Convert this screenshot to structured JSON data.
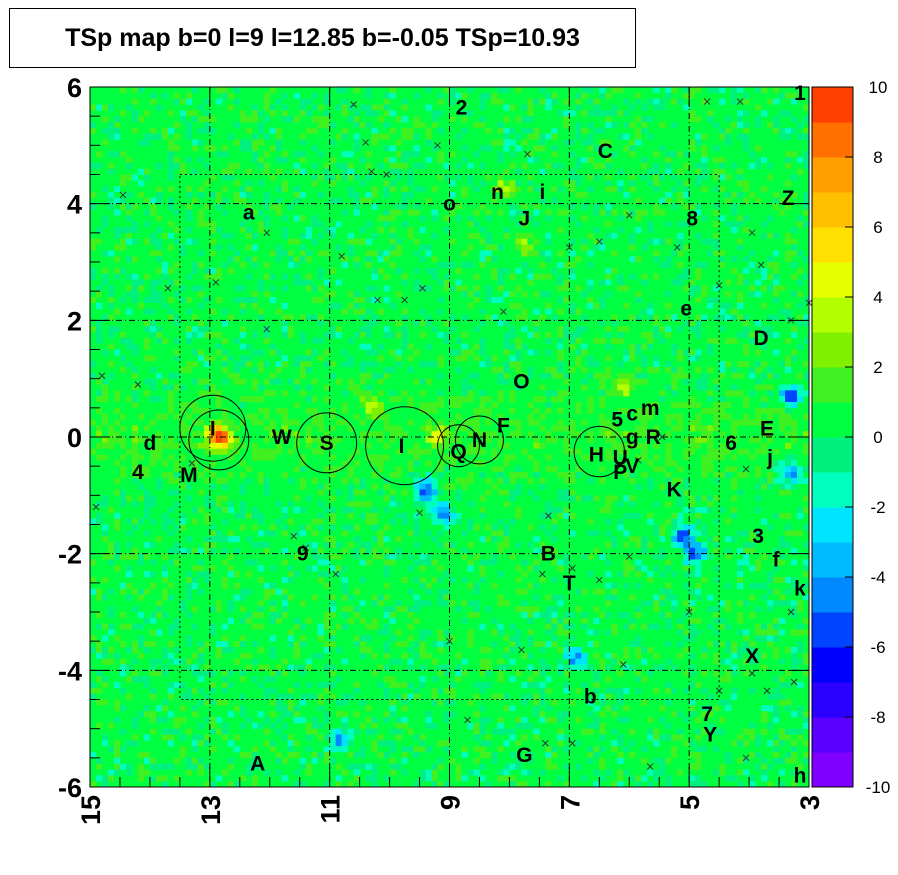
{
  "chart_data": {
    "type": "heatmap",
    "title": "TSp map b=0 l=9 l=12.85 b=-0.05 TSp=10.93",
    "xlim": [
      15,
      3
    ],
    "ylim": [
      -6,
      6
    ],
    "x_ticks": [
      15,
      13,
      11,
      9,
      7,
      5,
      3
    ],
    "y_ticks": [
      -6,
      -4,
      -2,
      0,
      2,
      4,
      6
    ],
    "colorbar": {
      "range": [
        -10,
        10
      ],
      "ticks": [
        -10,
        -8,
        -6,
        -4,
        -2,
        0,
        2,
        4,
        6,
        8,
        10
      ]
    },
    "grid": true,
    "inner_box": {
      "l": [
        13.5,
        4.5
      ],
      "b": [
        -4.5,
        4.5
      ]
    },
    "hotspots": [
      {
        "l": 12.85,
        "b": 0.0,
        "v": 10
      },
      {
        "l": 9.4,
        "b": -0.9,
        "v": -6
      },
      {
        "l": 9.1,
        "b": -1.3,
        "v": -5
      },
      {
        "l": 5.1,
        "b": -1.7,
        "v": -6
      },
      {
        "l": 4.9,
        "b": -2.0,
        "v": -5
      },
      {
        "l": 10.8,
        "b": -5.2,
        "v": -4
      },
      {
        "l": 6.9,
        "b": -3.8,
        "v": -4
      },
      {
        "l": 3.3,
        "b": -0.6,
        "v": -5
      },
      {
        "l": 3.3,
        "b": 0.7,
        "v": -6
      },
      {
        "l": 9.2,
        "b": 0.0,
        "v": 4
      },
      {
        "l": 6.1,
        "b": 0.9,
        "v": 4
      },
      {
        "l": 10.3,
        "b": 0.5,
        "v": 3
      },
      {
        "l": 7.8,
        "b": 3.3,
        "v": 3
      },
      {
        "l": 8.1,
        "b": 4.3,
        "v": 3
      }
    ],
    "circles": [
      {
        "l": 12.95,
        "b": 0.15,
        "r": 0.55
      },
      {
        "l": 12.85,
        "b": -0.05,
        "r": 0.5
      },
      {
        "l": 11.05,
        "b": -0.1,
        "r": 0.5
      },
      {
        "l": 9.75,
        "b": -0.15,
        "r": 0.65
      },
      {
        "l": 8.85,
        "b": -0.15,
        "r": 0.35
      },
      {
        "l": 8.5,
        "b": -0.05,
        "r": 0.4
      },
      {
        "l": 6.5,
        "b": -0.25,
        "r": 0.42
      }
    ],
    "source_labels": [
      {
        "text": "1",
        "l": 3.15,
        "b": 5.9
      },
      {
        "text": "2",
        "l": 8.8,
        "b": 5.65
      },
      {
        "text": "C",
        "l": 6.4,
        "b": 4.9
      },
      {
        "text": "n",
        "l": 8.2,
        "b": 4.2
      },
      {
        "text": "i",
        "l": 7.45,
        "b": 4.2
      },
      {
        "text": "o",
        "l": 9.0,
        "b": 4.0
      },
      {
        "text": "Z",
        "l": 3.35,
        "b": 4.1
      },
      {
        "text": "a",
        "l": 12.35,
        "b": 3.85
      },
      {
        "text": "J",
        "l": 7.75,
        "b": 3.75
      },
      {
        "text": "8",
        "l": 4.95,
        "b": 3.75
      },
      {
        "text": "e",
        "l": 5.05,
        "b": 2.2
      },
      {
        "text": "D",
        "l": 3.8,
        "b": 1.7
      },
      {
        "text": "O",
        "l": 7.8,
        "b": 0.95
      },
      {
        "text": "5",
        "l": 6.2,
        "b": 0.3
      },
      {
        "text": "c",
        "l": 5.95,
        "b": 0.4
      },
      {
        "text": "m",
        "l": 5.65,
        "b": 0.5
      },
      {
        "text": "F",
        "l": 8.1,
        "b": 0.2
      },
      {
        "text": "E",
        "l": 3.7,
        "b": 0.15
      },
      {
        "text": "I",
        "l": 12.95,
        "b": 0.15
      },
      {
        "text": "W",
        "l": 11.8,
        "b": 0.0
      },
      {
        "text": "S",
        "l": 11.05,
        "b": -0.1
      },
      {
        "text": "I",
        "l": 9.8,
        "b": -0.15
      },
      {
        "text": "N",
        "l": 8.5,
        "b": -0.05
      },
      {
        "text": "Q",
        "l": 8.85,
        "b": -0.25
      },
      {
        "text": "g",
        "l": 5.95,
        "b": 0.0
      },
      {
        "text": "R",
        "l": 5.6,
        "b": 0.0
      },
      {
        "text": "6",
        "l": 4.3,
        "b": -0.1
      },
      {
        "text": "d",
        "l": 14.0,
        "b": -0.1
      },
      {
        "text": "H",
        "l": 6.55,
        "b": -0.3
      },
      {
        "text": "U",
        "l": 6.15,
        "b": -0.35
      },
      {
        "text": "V",
        "l": 5.95,
        "b": -0.5
      },
      {
        "text": "P",
        "l": 6.15,
        "b": -0.6
      },
      {
        "text": "j",
        "l": 3.65,
        "b": -0.35
      },
      {
        "text": "4",
        "l": 14.2,
        "b": -0.6
      },
      {
        "text": "M",
        "l": 13.35,
        "b": -0.65
      },
      {
        "text": "K",
        "l": 5.25,
        "b": -0.9
      },
      {
        "text": "3",
        "l": 3.85,
        "b": -1.7
      },
      {
        "text": "9",
        "l": 11.45,
        "b": -2.0
      },
      {
        "text": "B",
        "l": 7.35,
        "b": -2.0
      },
      {
        "text": "f",
        "l": 3.55,
        "b": -2.1
      },
      {
        "text": "T",
        "l": 7.0,
        "b": -2.5
      },
      {
        "text": "k",
        "l": 3.15,
        "b": -2.6
      },
      {
        "text": "X",
        "l": 3.95,
        "b": -3.75
      },
      {
        "text": "b",
        "l": 6.65,
        "b": -4.45
      },
      {
        "text": "7",
        "l": 4.7,
        "b": -4.75
      },
      {
        "text": "Y",
        "l": 4.65,
        "b": -5.1
      },
      {
        "text": "G",
        "l": 7.75,
        "b": -5.45
      },
      {
        "text": "A",
        "l": 12.2,
        "b": -5.6
      },
      {
        "text": "h",
        "l": 3.15,
        "b": -5.8
      }
    ],
    "cross_markers": [
      {
        "l": 14.45,
        "b": 4.15
      },
      {
        "l": 13.7,
        "b": 2.55
      },
      {
        "l": 14.2,
        "b": 0.9
      },
      {
        "l": 14.8,
        "b": 1.05
      },
      {
        "l": 12.9,
        "b": 2.65
      },
      {
        "l": 12.05,
        "b": 3.5
      },
      {
        "l": 12.05,
        "b": 1.85
      },
      {
        "l": 10.8,
        "b": 3.1
      },
      {
        "l": 10.4,
        "b": 5.05
      },
      {
        "l": 10.6,
        "b": 5.7
      },
      {
        "l": 10.05,
        "b": 4.5
      },
      {
        "l": 10.3,
        "b": 4.55
      },
      {
        "l": 10.2,
        "b": 2.35
      },
      {
        "l": 9.75,
        "b": 2.35
      },
      {
        "l": 9.45,
        "b": 2.55
      },
      {
        "l": 9.2,
        "b": 5.0
      },
      {
        "l": 8.1,
        "b": 2.15
      },
      {
        "l": 7.7,
        "b": 4.85
      },
      {
        "l": 7.0,
        "b": 3.25
      },
      {
        "l": 6.5,
        "b": 3.35
      },
      {
        "l": 6.0,
        "b": 3.8
      },
      {
        "l": 5.2,
        "b": 3.25
      },
      {
        "l": 4.7,
        "b": 5.75
      },
      {
        "l": 4.15,
        "b": 5.75
      },
      {
        "l": 3.95,
        "b": 3.5
      },
      {
        "l": 3.8,
        "b": 2.95
      },
      {
        "l": 3.3,
        "b": 2.0
      },
      {
        "l": 3.0,
        "b": 2.3
      },
      {
        "l": 4.5,
        "b": 2.6
      },
      {
        "l": 6.95,
        "b": -2.25
      },
      {
        "l": 6.5,
        "b": -2.45
      },
      {
        "l": 7.45,
        "b": -2.35
      },
      {
        "l": 6.0,
        "b": -2.05
      },
      {
        "l": 5.85,
        "b": -0.4
      },
      {
        "l": 5.45,
        "b": 0.0
      },
      {
        "l": 4.05,
        "b": -0.55
      },
      {
        "l": 7.35,
        "b": -1.35
      },
      {
        "l": 11.6,
        "b": -1.7
      },
      {
        "l": 11.4,
        "b": -1.9
      },
      {
        "l": 10.9,
        "b": -2.35
      },
      {
        "l": 9.0,
        "b": -3.5
      },
      {
        "l": 7.8,
        "b": -3.65
      },
      {
        "l": 6.1,
        "b": -3.9
      },
      {
        "l": 5.0,
        "b": -3.0
      },
      {
        "l": 4.5,
        "b": -4.35
      },
      {
        "l": 3.95,
        "b": -4.05
      },
      {
        "l": 3.7,
        "b": -4.35
      },
      {
        "l": 3.25,
        "b": -4.2
      },
      {
        "l": 3.3,
        "b": -3.0
      },
      {
        "l": 8.7,
        "b": -4.85
      },
      {
        "l": 7.4,
        "b": -5.25
      },
      {
        "l": 6.95,
        "b": -5.25
      },
      {
        "l": 5.65,
        "b": -5.65
      },
      {
        "l": 4.05,
        "b": -5.5
      },
      {
        "l": 13.3,
        "b": -0.45
      },
      {
        "l": 14.9,
        "b": -1.2
      },
      {
        "l": 9.5,
        "b": -1.3
      }
    ]
  }
}
